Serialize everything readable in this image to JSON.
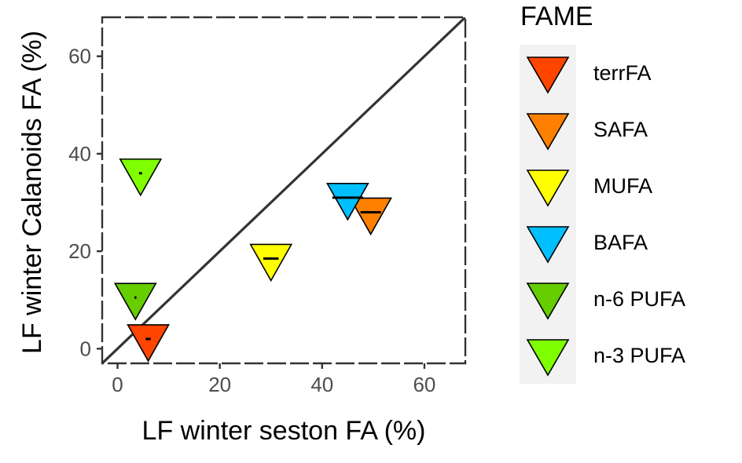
{
  "chart_data": {
    "type": "scatter",
    "xlabel": "LF winter seston FA (%)",
    "ylabel": "LF winter Calanoids FA (%)",
    "xlim": [
      -3,
      68
    ],
    "ylim": [
      -3,
      68
    ],
    "x_ticks": [
      0,
      20,
      40,
      60
    ],
    "y_ticks": [
      0,
      20,
      40,
      60
    ],
    "grid": false,
    "reference_line": "y = x",
    "legend": {
      "title": "FAME",
      "placement": "right",
      "entries": [
        {
          "label": "terrFA",
          "color": "#ff4500"
        },
        {
          "label": "SAFA",
          "color": "#ff8000"
        },
        {
          "label": "MUFA",
          "color": "#ffff00"
        },
        {
          "label": "BAFA",
          "color": "#00bfff"
        },
        {
          "label": "n-6 PUFA",
          "color": "#66cd00"
        },
        {
          "label": "n-3 PUFA",
          "color": "#7fff00"
        }
      ]
    },
    "series": [
      {
        "name": "terrFA",
        "x": 6,
        "y": 2,
        "error_halfwidth": 0.5
      },
      {
        "name": "SAFA",
        "x": 49.5,
        "y": 28,
        "error_halfwidth": 2
      },
      {
        "name": "MUFA",
        "x": 30,
        "y": 18.5,
        "error_halfwidth": 1.5
      },
      {
        "name": "BAFA",
        "x": 45,
        "y": 31,
        "error_halfwidth": 3
      },
      {
        "name": "n-6 PUFA",
        "x": 3.5,
        "y": 10.5,
        "error_halfwidth": 0.2
      },
      {
        "name": "n-3 PUFA",
        "x": 4.5,
        "y": 36,
        "error_halfwidth": 0.3
      }
    ]
  }
}
